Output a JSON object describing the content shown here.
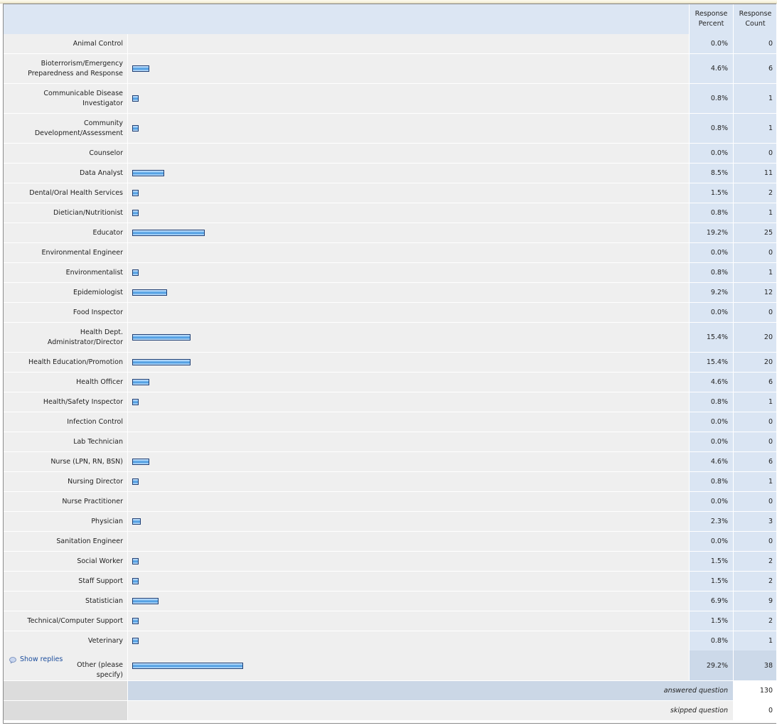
{
  "header": {
    "response_percent": "Response Percent",
    "response_count": "Response Count"
  },
  "colors": {
    "bar": "#3f93dd",
    "bar_border": "#1f3f74",
    "right_col_bg": "#dae5f3"
  },
  "chart_data": {
    "type": "bar",
    "orientation": "horizontal",
    "categories": [
      "Animal Control",
      "Bioterrorism/Emergency Preparedness and Response",
      "Communicable Disease Investigator",
      "Community Development/Assessment",
      "Counselor",
      "Data Analyst",
      "Dental/Oral Health Services",
      "Dietician/Nutritionist",
      "Educator",
      "Environmental Engineer",
      "Environmentalist",
      "Epidemiologist",
      "Food Inspector",
      "Health Dept. Administrator/Director",
      "Health Education/Promotion",
      "Health Officer",
      "Health/Safety Inspector",
      "Infection Control",
      "Lab Technician",
      "Nurse (LPN, RN, BSN)",
      "Nursing Director",
      "Nurse Practitioner",
      "Physician",
      "Sanitation Engineer",
      "Social Worker",
      "Staff Support",
      "Statistician",
      "Technical/Computer Support",
      "Veterinary",
      "Other (please specify)"
    ],
    "series": [
      {
        "name": "Response Percent",
        "values": [
          0.0,
          4.6,
          0.8,
          0.8,
          0.0,
          8.5,
          1.5,
          0.8,
          19.2,
          0.0,
          0.8,
          9.2,
          0.0,
          15.4,
          15.4,
          4.6,
          0.8,
          0.0,
          0.0,
          4.6,
          0.8,
          0.0,
          2.3,
          0.0,
          1.5,
          1.5,
          6.9,
          1.5,
          0.8,
          29.2
        ]
      },
      {
        "name": "Response Count",
        "values": [
          0,
          6,
          1,
          1,
          0,
          11,
          2,
          1,
          25,
          0,
          1,
          12,
          0,
          20,
          20,
          6,
          1,
          0,
          0,
          6,
          1,
          0,
          3,
          0,
          2,
          2,
          9,
          2,
          1,
          38
        ]
      }
    ],
    "xlim": [
      0,
      100
    ],
    "grid": false
  },
  "rows": [
    {
      "label": "Animal Control",
      "percent": "0.0%",
      "count": "0"
    },
    {
      "label": "Bioterrorism/Emergency Preparedness and Response",
      "percent": "4.6%",
      "count": "6"
    },
    {
      "label": "Communicable Disease Investigator",
      "percent": "0.8%",
      "count": "1"
    },
    {
      "label": "Community Development/Assessment",
      "percent": "0.8%",
      "count": "1"
    },
    {
      "label": "Counselor",
      "percent": "0.0%",
      "count": "0"
    },
    {
      "label": "Data Analyst",
      "percent": "8.5%",
      "count": "11"
    },
    {
      "label": "Dental/Oral Health Services",
      "percent": "1.5%",
      "count": "2"
    },
    {
      "label": "Dietician/Nutritionist",
      "percent": "0.8%",
      "count": "1"
    },
    {
      "label": "Educator",
      "percent": "19.2%",
      "count": "25"
    },
    {
      "label": "Environmental Engineer",
      "percent": "0.0%",
      "count": "0"
    },
    {
      "label": "Environmentalist",
      "percent": "0.8%",
      "count": "1"
    },
    {
      "label": "Epidemiologist",
      "percent": "9.2%",
      "count": "12"
    },
    {
      "label": "Food Inspector",
      "percent": "0.0%",
      "count": "0"
    },
    {
      "label": "Health Dept. Administrator/Director",
      "percent": "15.4%",
      "count": "20"
    },
    {
      "label": "Health Education/Promotion",
      "percent": "15.4%",
      "count": "20"
    },
    {
      "label": "Health Officer",
      "percent": "4.6%",
      "count": "6"
    },
    {
      "label": "Health/Safety Inspector",
      "percent": "0.8%",
      "count": "1"
    },
    {
      "label": "Infection Control",
      "percent": "0.0%",
      "count": "0"
    },
    {
      "label": "Lab Technician",
      "percent": "0.0%",
      "count": "0"
    },
    {
      "label": "Nurse (LPN, RN, BSN)",
      "percent": "4.6%",
      "count": "6"
    },
    {
      "label": "Nursing Director",
      "percent": "0.8%",
      "count": "1"
    },
    {
      "label": "Nurse Practitioner",
      "percent": "0.0%",
      "count": "0"
    },
    {
      "label": "Physician",
      "percent": "2.3%",
      "count": "3"
    },
    {
      "label": "Sanitation Engineer",
      "percent": "0.0%",
      "count": "0"
    },
    {
      "label": "Social Worker",
      "percent": "1.5%",
      "count": "2"
    },
    {
      "label": "Staff Support",
      "percent": "1.5%",
      "count": "2"
    },
    {
      "label": "Statistician",
      "percent": "6.9%",
      "count": "9"
    },
    {
      "label": "Technical/Computer Support",
      "percent": "1.5%",
      "count": "2"
    },
    {
      "label": "Veterinary",
      "percent": "0.8%",
      "count": "1"
    }
  ],
  "other": {
    "label": "Other (please specify)",
    "percent": "29.2%",
    "count": "38",
    "show_replies": "Show replies",
    "show_replies_icon": "speech-bubble-icon"
  },
  "footer": {
    "answered_label": "answered question",
    "answered_count": "130",
    "skipped_label": "skipped question",
    "skipped_count": "0"
  }
}
